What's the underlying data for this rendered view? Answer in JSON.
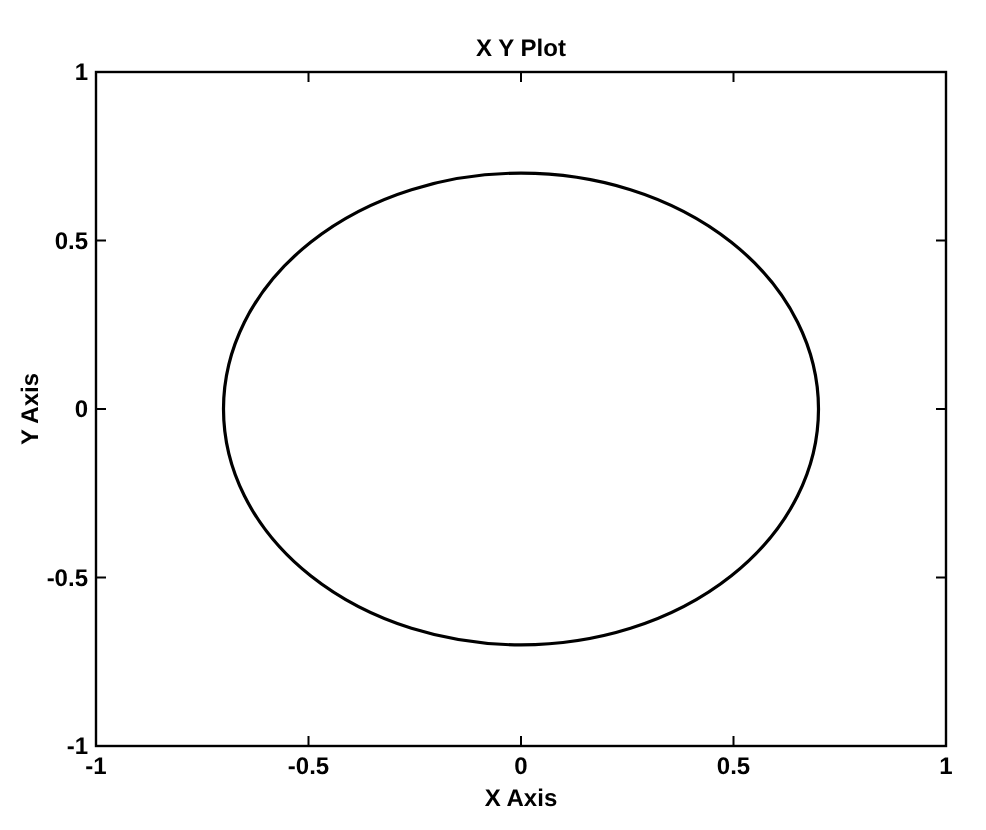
{
  "chart_data": {
    "type": "line",
    "title": "X Y Plot",
    "xlabel": "X Axis",
    "ylabel": "Y Axis",
    "xlim": [
      -1,
      1
    ],
    "ylim": [
      -1,
      1
    ],
    "xticks": [
      -1,
      -0.5,
      0,
      0.5,
      1
    ],
    "yticks": [
      -1,
      -0.5,
      0,
      0.5,
      1
    ],
    "grid": false
  }
}
